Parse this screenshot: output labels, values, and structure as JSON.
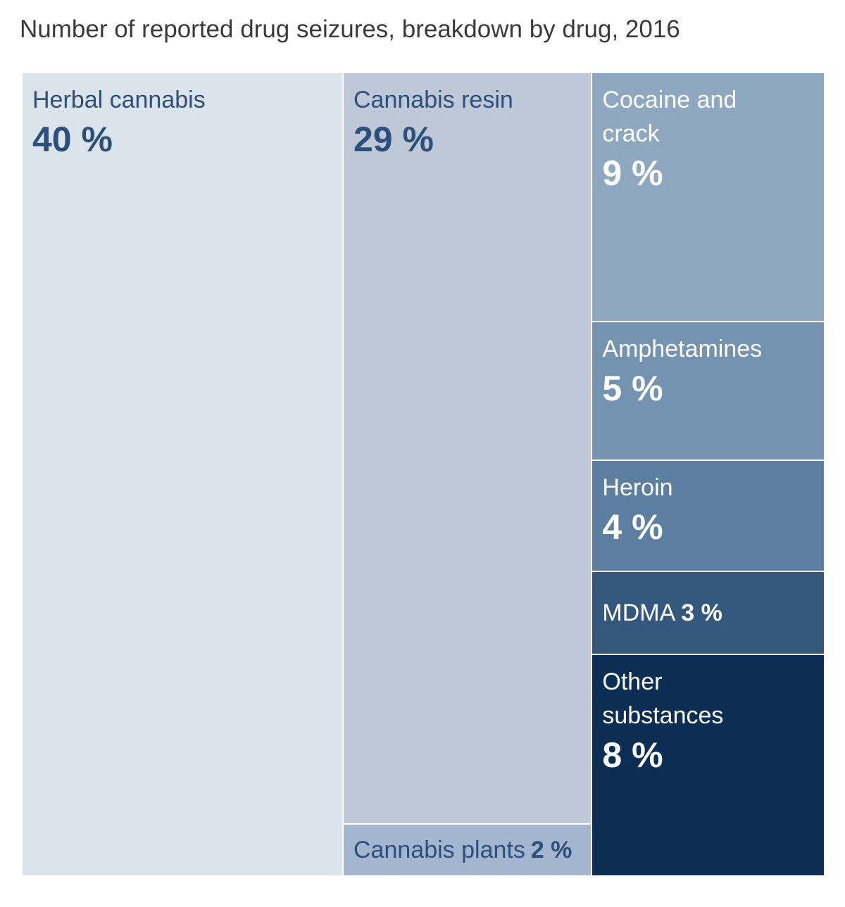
{
  "chart_data": {
    "type": "treemap",
    "title": "Number of reported drug seizures, breakdown by drug, 2016",
    "categories": [
      "Herbal cannabis",
      "Cannabis resin",
      "Cannabis plants",
      "Cocaine and crack",
      "Amphetamines",
      "Heroin",
      "MDMA",
      "Other substances"
    ],
    "values": [
      40,
      29,
      2,
      9,
      5,
      4,
      3,
      8
    ],
    "value_labels": [
      "40 %",
      "29 %",
      "2 %",
      "9 %",
      "5 %",
      "4 %",
      "3 %",
      "8 %"
    ],
    "colors": [
      "#dbe3eb",
      "#bec8d7",
      "#a4b5d0",
      "#8ea8c1",
      "#7393b1",
      "#5b7ea1",
      "#34577e",
      "#0c2e54"
    ],
    "label_colors": [
      "#2d4f7c",
      "#2d4f7c",
      "#2d4f7c",
      "#ffffff",
      "#ffffff",
      "#ffffff",
      "#ffffff",
      "#ffffff"
    ]
  }
}
